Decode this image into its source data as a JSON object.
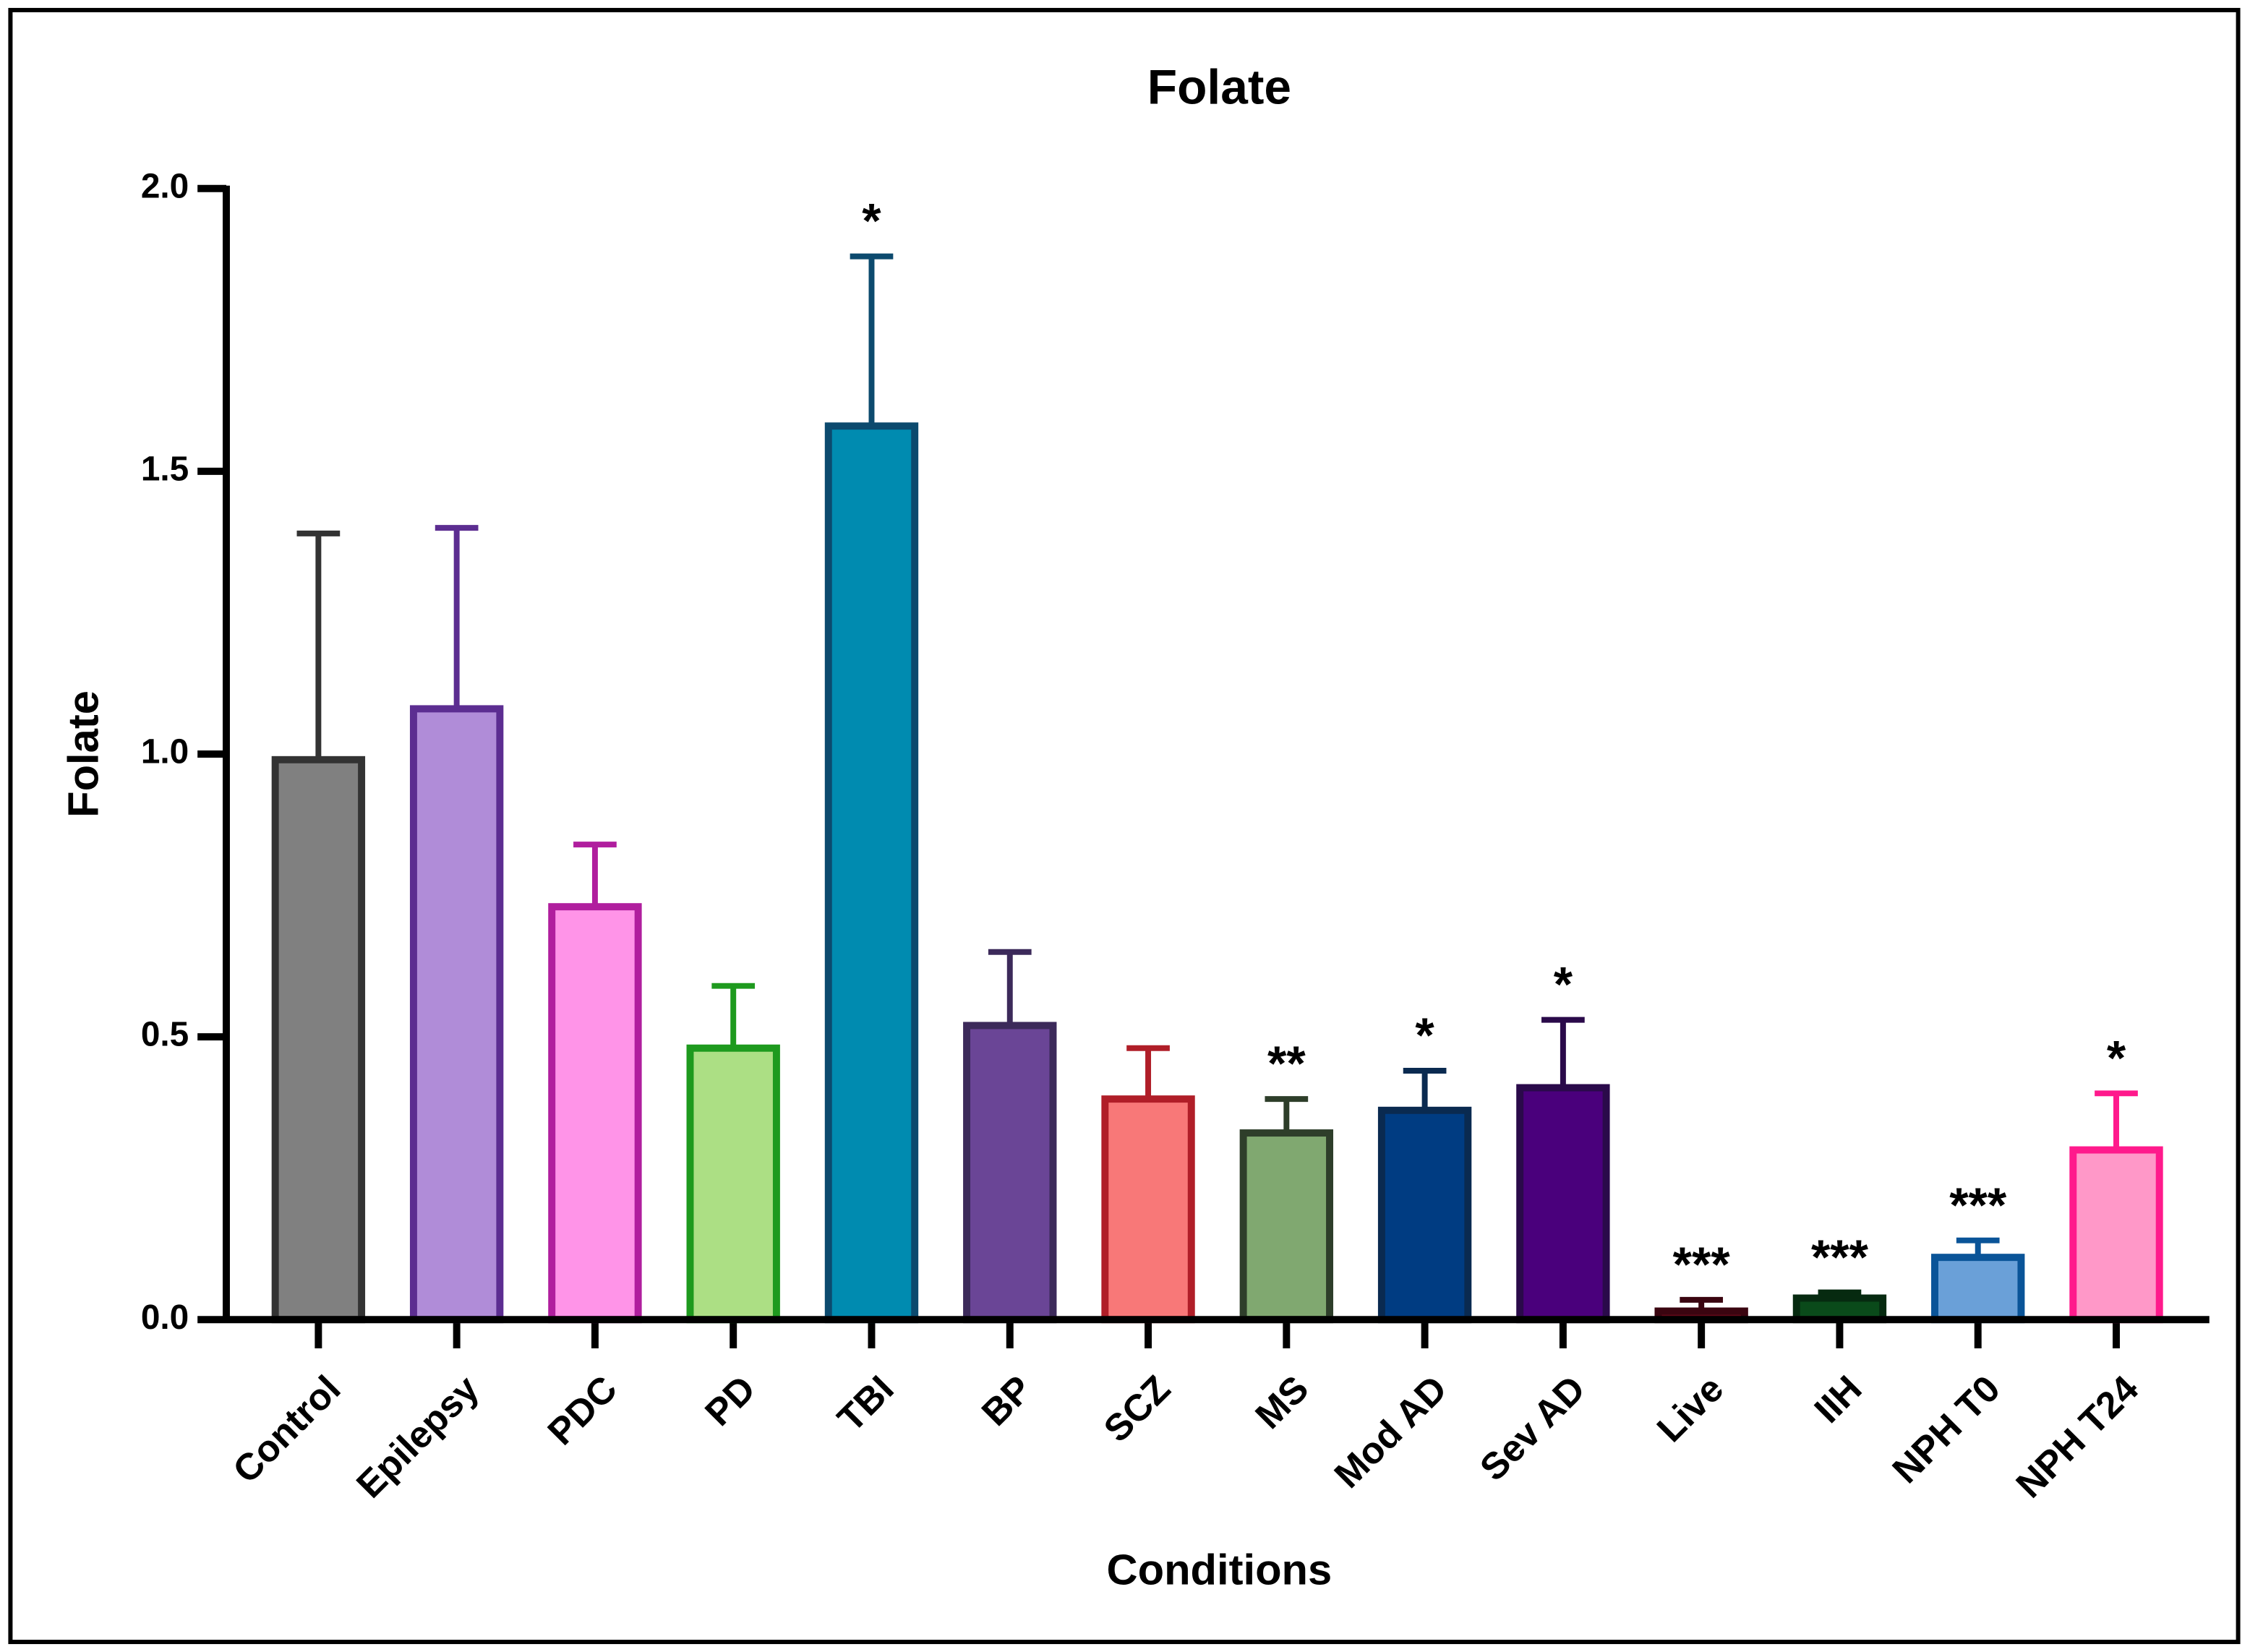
{
  "chart_data": {
    "type": "bar",
    "title": "Folate",
    "x_label": "Conditions",
    "y_label": "Folate",
    "categories": [
      "Control",
      "Epilepsy",
      "PDC",
      "PD",
      "TBI",
      "BP",
      "SCZ",
      "MS",
      "Mod AD",
      "Sev AD",
      "Live",
      "IIH",
      "NPH T0",
      "NPH T24"
    ],
    "values": [
      0.99,
      1.08,
      0.73,
      0.48,
      1.58,
      0.52,
      0.39,
      0.33,
      0.37,
      0.41,
      0.015,
      0.038,
      0.11,
      0.3
    ],
    "errors": [
      0.4,
      0.32,
      0.11,
      0.11,
      0.3,
      0.13,
      0.09,
      0.06,
      0.07,
      0.12,
      0.02,
      0.01,
      0.03,
      0.1
    ],
    "annotations": [
      null,
      null,
      null,
      null,
      "*",
      null,
      null,
      "**",
      "*",
      "*",
      "***",
      "***",
      "***",
      "*"
    ],
    "colors": [
      "#808080",
      "#b08cd8",
      "#ff94e8",
      "#acdf84",
      "#008bb0",
      "#6a4596",
      "#f87878",
      "#80a870",
      "#003c82",
      "#4a007c",
      "#600818",
      "#0a4a1a",
      "#6aa0d8",
      "#ff98c8"
    ],
    "edge_colors": [
      "#333333",
      "#5c2d91",
      "#b01e9e",
      "#1e9a1e",
      "#0c4a6e",
      "#3c2a5a",
      "#b01e28",
      "#2e3e2a",
      "#0a2a50",
      "#2a0a4a",
      "#3a0510",
      "#062a10",
      "#0a5498",
      "#ff1a8c"
    ],
    "ylim": [
      0,
      2.0
    ],
    "yticks": [
      {
        "value": 0,
        "label": "0.0"
      },
      {
        "value": 0.5,
        "label": "0.5"
      },
      {
        "value": 1.0,
        "label": "1.0"
      },
      {
        "value": 1.5,
        "label": "1.5"
      },
      {
        "value": 2.0,
        "label": "2.0"
      }
    ],
    "grid": false
  }
}
